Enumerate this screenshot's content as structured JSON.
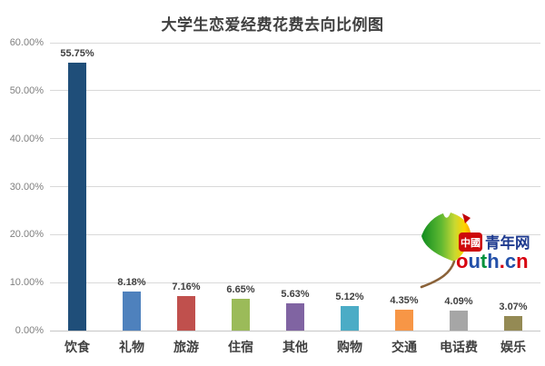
{
  "title": "大学生恋爱经费花费去向比例图",
  "chart_data": {
    "type": "bar",
    "title": "大学生恋爱经费花费去向比例图",
    "categories": [
      "饮食",
      "礼物",
      "旅游",
      "住宿",
      "其他",
      "购物",
      "交通",
      "电话费",
      "娱乐"
    ],
    "values": [
      55.75,
      8.18,
      7.16,
      6.65,
      5.63,
      5.12,
      4.35,
      4.09,
      3.07
    ],
    "value_labels": [
      "55.75%",
      "8.18%",
      "7.16%",
      "6.65%",
      "5.63%",
      "5.12%",
      "4.35%",
      "4.09%",
      "3.07%"
    ],
    "bar_colors": [
      "#1F4E79",
      "#4E81BD",
      "#C0504D",
      "#9BBB59",
      "#8064A2",
      "#4BACC6",
      "#F79646",
      "#A6A6A6",
      "#948A54"
    ],
    "xlabel": "",
    "ylabel": "",
    "ylim": [
      0,
      60
    ],
    "y_ticks": [
      "0.00%",
      "10.00%",
      "20.00%",
      "30.00%",
      "40.00%",
      "50.00%",
      "60.00%"
    ],
    "grid": true,
    "legend_position": "none"
  },
  "watermark": {
    "badge_text": "中國",
    "cn_text": "青年网",
    "latin_letters": [
      "o",
      "u",
      "t",
      "h",
      ".",
      "c",
      "n"
    ],
    "latin_colors": [
      "#D7000F",
      "#2350A9",
      "#00913A",
      "#2350A9",
      "#D7000F",
      "#2350A9",
      "#D7000F"
    ],
    "badge_color": "#CE090B",
    "cn_text_color": "#1E3A8F",
    "leaf_green": "#0F8C1F",
    "leaf_yellow": "#FFD400",
    "stem_brown": "#8A6239"
  },
  "colors": {
    "background": "#FFFFFF",
    "grid": "#D9D9D9",
    "axis": "#C6C6C6",
    "tick_label": "#7F7F7F",
    "value_label": "#3F3F3F",
    "category_label": "#3F3F3F",
    "title": "#404040"
  }
}
